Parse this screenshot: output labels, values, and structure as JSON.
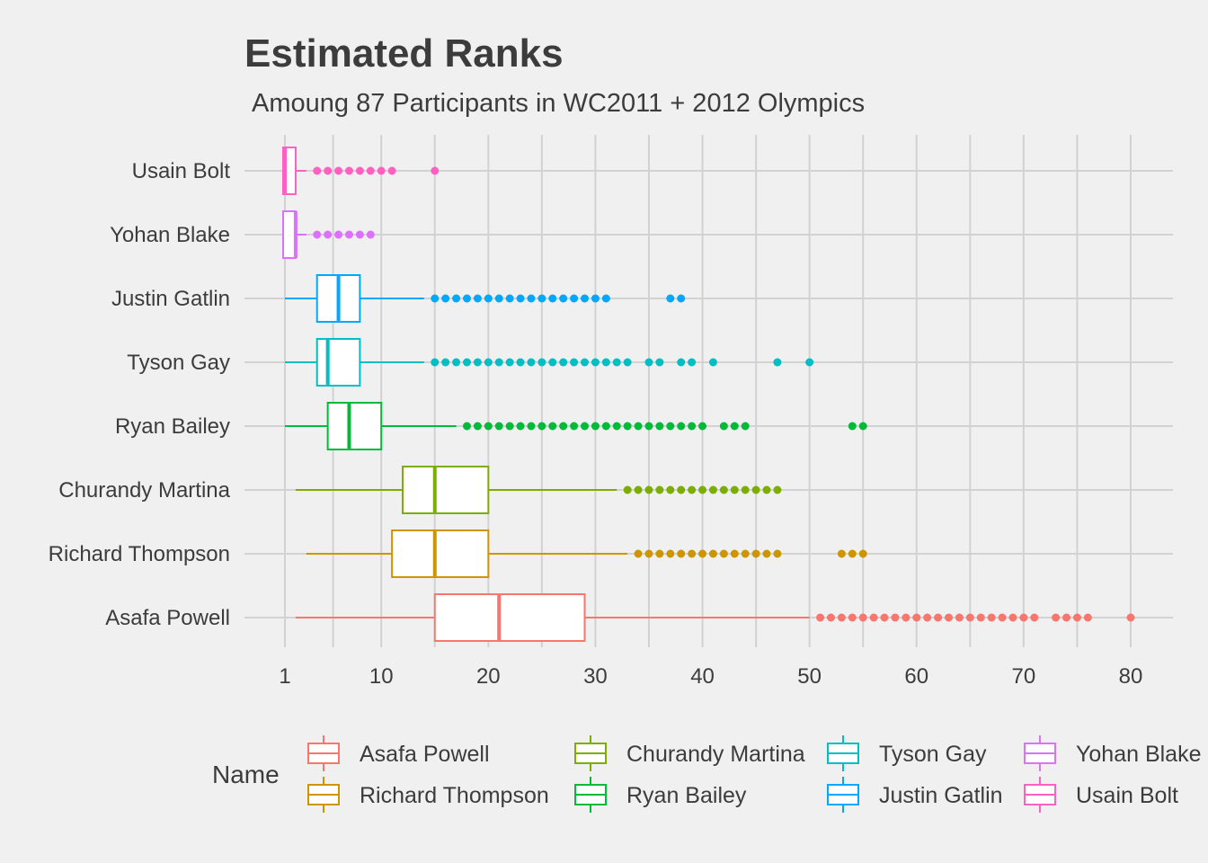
{
  "chart_data": {
    "type": "boxplot",
    "title": "Estimated Ranks",
    "subtitle": "Amoung 87 Participants in WC2011 + 2012 Olympics",
    "xlabel": "",
    "ylabel": "",
    "xlim": [
      1,
      83
    ],
    "xticks": [
      1,
      10,
      20,
      30,
      40,
      50,
      60,
      70,
      80
    ],
    "grid": true,
    "legend_title": "Name",
    "legend_position": "bottom",
    "legend_order": [
      "Asafa Powell",
      "Richard Thompson",
      "Churandy Martina",
      "Ryan Bailey",
      "Tyson Gay",
      "Justin Gatlin",
      "Yohan Blake",
      "Usain Bolt"
    ],
    "series": [
      {
        "name": "Usain Bolt",
        "color": "#FF61C3",
        "whisker_low": 1,
        "q1": 1,
        "median": 1,
        "q3": 2,
        "whisker_high": 3,
        "outliers": [
          4,
          5,
          6,
          7,
          8,
          9,
          10,
          11,
          15
        ]
      },
      {
        "name": "Yohan Blake",
        "color": "#DB72FB",
        "whisker_low": 1,
        "q1": 1,
        "median": 2,
        "q3": 2,
        "whisker_high": 3,
        "outliers": [
          4,
          5,
          6,
          7,
          8,
          9
        ]
      },
      {
        "name": "Justin Gatlin",
        "color": "#00A9FF",
        "whisker_low": 1,
        "q1": 4,
        "median": 6,
        "q3": 8,
        "whisker_high": 14,
        "outliers": [
          15,
          16,
          17,
          18,
          19,
          20,
          21,
          22,
          23,
          24,
          25,
          26,
          27,
          28,
          29,
          30,
          31,
          37,
          38
        ]
      },
      {
        "name": "Tyson Gay",
        "color": "#00BFC4",
        "whisker_low": 1,
        "q1": 4,
        "median": 5,
        "q3": 8,
        "whisker_high": 14,
        "outliers": [
          15,
          16,
          17,
          18,
          19,
          20,
          21,
          22,
          23,
          24,
          25,
          26,
          27,
          28,
          29,
          30,
          31,
          32,
          33,
          35,
          36,
          38,
          39,
          41,
          47,
          50
        ]
      },
      {
        "name": "Ryan Bailey",
        "color": "#00BA38",
        "whisker_low": 1,
        "q1": 5,
        "median": 7,
        "q3": 10,
        "whisker_high": 17,
        "outliers": [
          18,
          19,
          20,
          21,
          22,
          23,
          24,
          25,
          26,
          27,
          28,
          29,
          30,
          31,
          32,
          33,
          34,
          35,
          36,
          37,
          38,
          39,
          40,
          42,
          43,
          44,
          54,
          55
        ]
      },
      {
        "name": "Churandy Martina",
        "color": "#7CAE00",
        "whisker_low": 2,
        "q1": 12,
        "median": 15,
        "q3": 20,
        "whisker_high": 32,
        "outliers": [
          33,
          34,
          35,
          36,
          37,
          38,
          39,
          40,
          41,
          42,
          43,
          44,
          45,
          46,
          47
        ]
      },
      {
        "name": "Richard Thompson",
        "color": "#CD9600",
        "whisker_low": 3,
        "q1": 11,
        "median": 15,
        "q3": 20,
        "whisker_high": 33,
        "outliers": [
          34,
          35,
          36,
          37,
          38,
          39,
          40,
          41,
          42,
          43,
          44,
          45,
          46,
          47,
          53,
          54,
          55
        ]
      },
      {
        "name": "Asafa Powell",
        "color": "#F8766D",
        "whisker_low": 2,
        "q1": 15,
        "median": 21,
        "q3": 29,
        "whisker_high": 50,
        "outliers": [
          51,
          52,
          53,
          54,
          55,
          56,
          57,
          58,
          59,
          60,
          61,
          62,
          63,
          64,
          65,
          66,
          67,
          68,
          69,
          70,
          71,
          73,
          74,
          75,
          76,
          80
        ]
      }
    ]
  }
}
